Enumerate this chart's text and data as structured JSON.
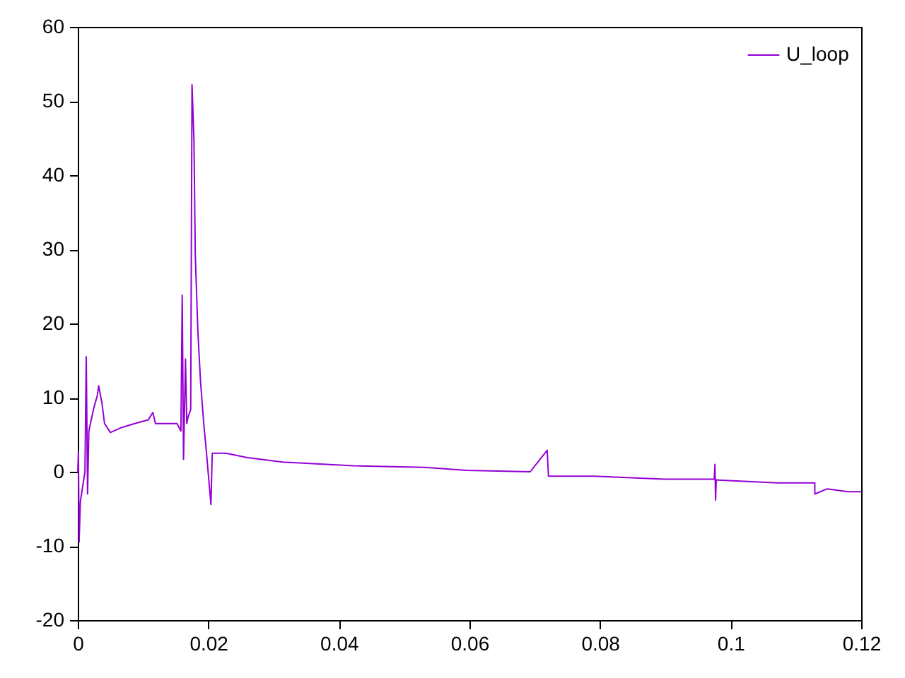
{
  "chart_data": {
    "type": "line",
    "x": [
      0,
      0.0001,
      0.0002,
      0.0004,
      0.0011,
      0.0013,
      0.0015,
      0.0017,
      0.0024,
      0.003,
      0.0032,
      0.0037,
      0.0041,
      0.005,
      0.0065,
      0.0087,
      0.0108,
      0.0115,
      0.0119,
      0.0152,
      0.0158,
      0.016,
      0.0162,
      0.0165,
      0.0167,
      0.0169,
      0.0173,
      0.0175,
      0.0178,
      0.018,
      0.0184,
      0.0188,
      0.0193,
      0.0197,
      0.0204,
      0.0206,
      0.0227,
      0.026,
      0.0314,
      0.0422,
      0.0531,
      0.0596,
      0.0693,
      0.0719,
      0.0721,
      0.0791,
      0.0899,
      0.0975,
      0.0976,
      0.0977,
      0.0978,
      0.1072,
      0.1129,
      0.1129,
      0.1148,
      0.118,
      0.12
    ],
    "series": [
      {
        "name": "U_loop",
        "color": "#9400d3",
        "values": [
          0,
          2.7,
          -9.5,
          -4,
          0,
          15.5,
          -3,
          5.5,
          8.4,
          10.3,
          11.6,
          9.3,
          6.5,
          5.3,
          5.9,
          6.5,
          7,
          8,
          6.5,
          6.5,
          5.5,
          23.8,
          1.7,
          15.2,
          6.5,
          7.4,
          8.4,
          52.2,
          44.6,
          29.3,
          18.9,
          12.2,
          6.5,
          2.7,
          -4.4,
          2.5,
          2.5,
          1.9,
          1.3,
          0.8,
          0.6,
          0.2,
          0,
          2.9,
          -0.6,
          -0.6,
          -1,
          -1,
          1,
          -3.8,
          -1.1,
          -1.5,
          -1.5,
          -3,
          -2.3,
          -2.7,
          -2.7
        ]
      }
    ],
    "xlim": [
      0,
      0.12
    ],
    "xticks": [
      0,
      0.02,
      0.04,
      0.06,
      0.08,
      0.1,
      0.12
    ],
    "ylim": [
      -20,
      60
    ],
    "yticks": [
      -20,
      -10,
      0,
      10,
      20,
      30,
      40,
      50,
      60
    ],
    "grid": false,
    "legend": "top right",
    "marker": "none",
    "line_style": "solid"
  }
}
